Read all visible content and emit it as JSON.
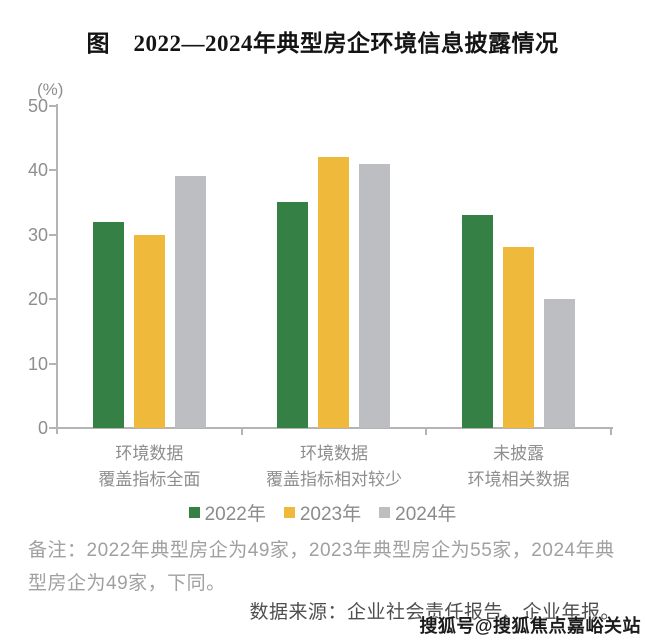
{
  "title": "图　2022—2024年典型房企环境信息披露情况",
  "chart_data": {
    "type": "bar",
    "title": "图　2022—2024年典型房企环境信息披露情况",
    "ylabel": "(%)",
    "ylim": [
      0,
      50
    ],
    "yticks": [
      0,
      10,
      20,
      30,
      40,
      50
    ],
    "grid": false,
    "legend_position": "bottom",
    "categories": [
      "环境数据\n覆盖指标全面",
      "环境数据\n覆盖指标相对较少",
      "未披露\n环境相关数据"
    ],
    "series": [
      {
        "name": "2022年",
        "color": "#348045",
        "values": [
          32,
          35,
          33
        ]
      },
      {
        "name": "2023年",
        "color": "#EFB93B",
        "values": [
          30,
          42,
          28
        ]
      },
      {
        "name": "2024年",
        "color": "#BDBEC2",
        "values": [
          39,
          41,
          20
        ]
      }
    ]
  },
  "notes": {
    "remark": "备注：2022年典型房企为49家，2023年典型房企为55家，2024年典型房企为49家，下同。",
    "source": "数据来源：企业社会责任报告、企业年报。",
    "watermark": "搜狐号@搜狐焦点嘉峪关站"
  }
}
